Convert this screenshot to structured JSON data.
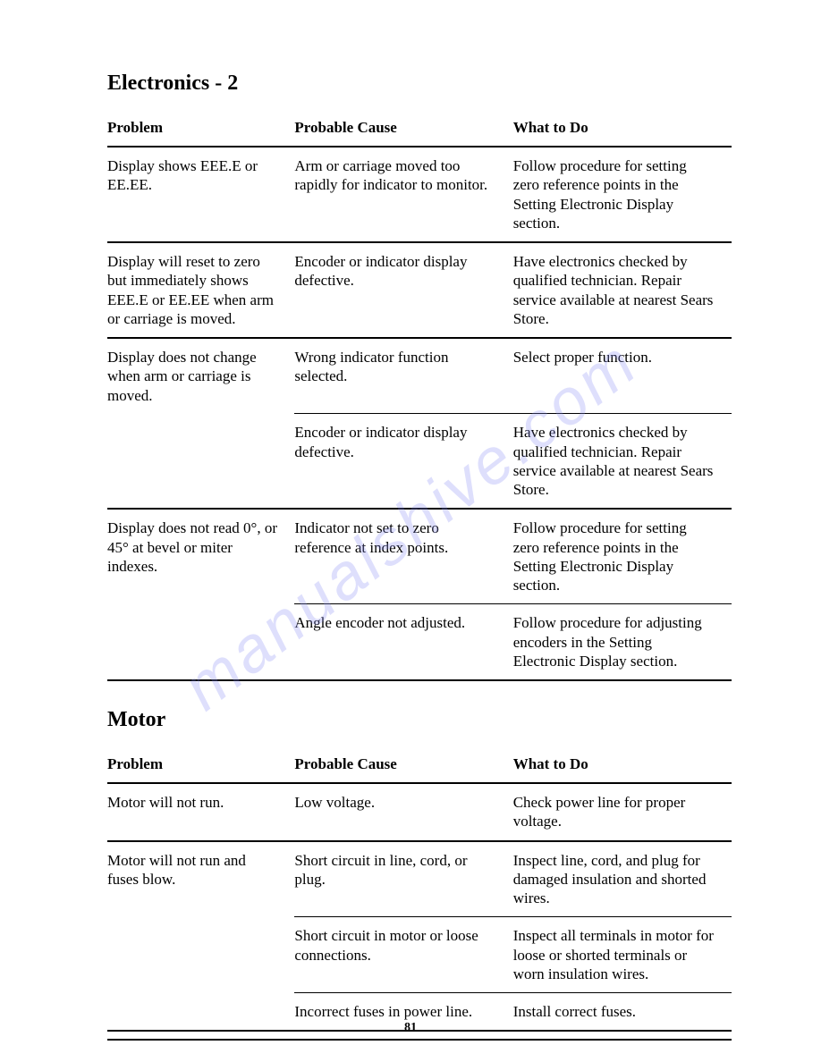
{
  "page_number": "81",
  "watermark_text": "manualshive.com",
  "sections": [
    {
      "title": "Electronics - 2",
      "headers": [
        "Problem",
        "Probable Cause",
        "What to Do"
      ],
      "rows": [
        {
          "problem": "Display shows EEE.E or EE.EE.",
          "cause": "Arm or carriage moved too rapidly for indicator to monitor.",
          "todo": "Follow procedure for setting zero reference points in the Setting Electronic Display section.",
          "sep_before": "full"
        },
        {
          "problem": "Display will reset to zero but immediately shows EEE.E or EE.EE when arm or carriage is moved.",
          "cause": "Encoder or indicator display defective.",
          "todo": "Have electronics checked by qualified technician. Repair service available at nearest Sears Store.",
          "sep_before": "full"
        },
        {
          "problem": "Display does not change when arm or carriage is moved.",
          "cause": "Wrong indicator function selected.",
          "todo": "Select proper function.",
          "sep_before": "full"
        },
        {
          "problem": "",
          "cause": "Encoder or indicator display defective.",
          "todo": "Have electronics checked by qualified technician. Repair service available at nearest Sears Store.",
          "sep_before": "partial"
        },
        {
          "problem": "Display does not read 0°, or 45° at bevel or miter indexes.",
          "cause": "Indicator not set to zero reference at index points.",
          "todo": "Follow procedure for setting zero reference points in the Setting Electronic Display section.",
          "sep_before": "full"
        },
        {
          "problem": "",
          "cause": "Angle encoder not adjusted.",
          "todo": "Follow procedure for adjusting encoders in the Setting Electronic Display section.",
          "sep_before": "partial"
        }
      ],
      "bottom_rule": true
    },
    {
      "title": "Motor",
      "headers": [
        "Problem",
        "Probable Cause",
        "What to Do"
      ],
      "rows": [
        {
          "problem": "Motor will not run.",
          "cause": "Low voltage.",
          "todo": "Check power line for proper voltage.",
          "sep_before": "full"
        },
        {
          "problem": "Motor will not run and fuses blow.",
          "cause": "Short circuit in line, cord, or plug.",
          "todo": "Inspect line, cord, and plug for damaged insulation and shorted wires.",
          "sep_before": "full"
        },
        {
          "problem": "",
          "cause": "Short circuit in motor or loose connections.",
          "todo": "Inspect all terminals in motor for loose or shorted terminals or worn insulation wires.",
          "sep_before": "partial"
        },
        {
          "problem": "",
          "cause": "Incorrect fuses in power line.",
          "todo": "Install correct fuses.",
          "sep_before": "partial"
        }
      ],
      "bottom_rule": true
    }
  ]
}
